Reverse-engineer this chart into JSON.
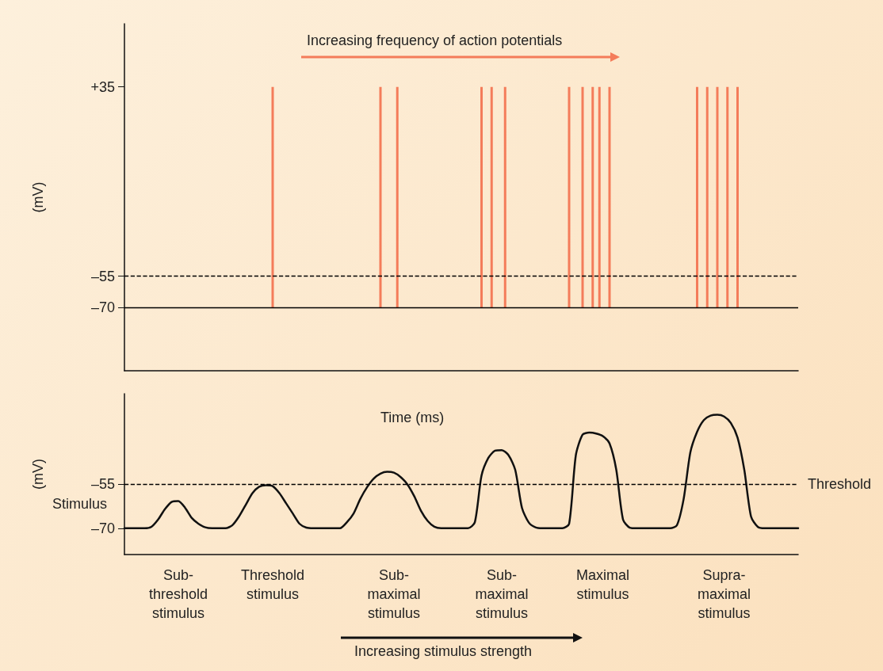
{
  "chart_data": [
    {
      "type": "bar",
      "ylabel": "(mV)",
      "annotations": [
        "Increasing frequency of action potentials"
      ],
      "categories": [
        null,
        null,
        null,
        null,
        null,
        null,
        null,
        null,
        null,
        null,
        null,
        null,
        null,
        null,
        null,
        null,
        null,
        null,
        null,
        null,
        null,
        null,
        null,
        null,
        null,
        null,
        null,
        null,
        null,
        null,
        null,
        null,
        null,
        null,
        null,
        null,
        null,
        null,
        null,
        null,
        null,
        null,
        null,
        null,
        null,
        null,
        null,
        null,
        null,
        null,
        null,
        null,
        null,
        null,
        null,
        null,
        null,
        null,
        null,
        null,
        null,
        null,
        null,
        null,
        null,
        null,
        null,
        null,
        null,
        null,
        null,
        null,
        null,
        null,
        null,
        null,
        null,
        null,
        null,
        null,
        null,
        null,
        null,
        null,
        null,
        null,
        null,
        null,
        null,
        null,
        null,
        null,
        null,
        null,
        null,
        null,
        null,
        null,
        null,
        null,
        null,
        null,
        null,
        null,
        null,
        null,
        null,
        null,
        null,
        null,
        null,
        null,
        null,
        null,
        null,
        null,
        null,
        null,
        null,
        null,
        null,
        null,
        null,
        null,
        null,
        null,
        null,
        null,
        null,
        null,
        null,
        null,
        null,
        null,
        null,
        null,
        null,
        null,
        null,
        null,
        null,
        null,
        null,
        null,
        null,
        null,
        null,
        null,
        null,
        null,
        null,
        null,
        null,
        null,
        null,
        null,
        null,
        null,
        null,
        null,
        null,
        null,
        null,
        null,
        null,
        null,
        null,
        null,
        null,
        null,
        null,
        null,
        null,
        null,
        null,
        null,
        null,
        null,
        null,
        null,
        null,
        null,
        null,
        null,
        null,
        null,
        null,
        null,
        null,
        null,
        null,
        null,
        null,
        null,
        null,
        null,
        null,
        null,
        null,
        null,
        null
      ],
      "series": [
        {
          "color": "#f47c5a",
          "values": [
            null,
            null,
            null,
            null,
            null,
            null,
            null,
            null,
            null,
            null,
            null,
            null,
            null,
            null,
            null,
            null,
            null,
            null,
            null,
            null,
            null,
            null,
            null,
            null,
            null,
            null,
            null,
            null,
            null,
            null,
            null,
            null,
            null,
            null,
            null,
            null,
            null,
            null,
            null,
            null,
            null,
            null,
            null,
            null,
            105,
            null,
            null,
            null,
            null,
            null,
            null,
            null,
            null,
            null,
            null,
            null,
            null,
            null,
            null,
            null,
            null,
            null,
            null,
            null,
            null,
            null,
            null,
            null,
            null,
            null,
            null,
            null,
            null,
            null,
            null,
            null,
            105,
            null,
            null,
            null,
            null,
            105,
            null,
            null,
            null,
            null,
            null,
            null,
            null,
            null,
            null,
            null,
            null,
            null,
            null,
            null,
            null,
            null,
            null,
            null,
            null,
            null,
            null,
            null,
            null,
            null,
            105,
            null,
            null,
            105,
            null,
            null,
            null,
            105,
            null,
            null,
            null,
            null,
            null,
            null,
            null,
            null,
            null,
            null,
            null,
            null,
            null,
            null,
            null,
            null,
            null,
            null,
            105,
            null,
            null,
            null,
            105,
            null,
            null,
            105,
            null,
            105,
            null,
            null,
            105,
            null,
            null,
            null,
            null,
            null,
            null,
            null,
            null,
            null,
            null,
            null,
            null,
            null,
            null,
            null,
            null,
            null,
            null,
            null,
            null,
            null,
            null,
            null,
            null,
            null,
            105,
            null,
            null,
            105,
            null,
            null,
            105,
            null,
            null,
            105,
            null,
            null,
            105,
            null,
            null,
            null,
            null,
            null,
            null,
            null,
            null,
            null,
            null,
            null,
            null,
            null,
            null,
            null,
            null,
            null,
            null
          ],
          "base": [
            null,
            null,
            null,
            null,
            null,
            null,
            null,
            null,
            null,
            null,
            null,
            null,
            null,
            null,
            null,
            null,
            null,
            null,
            null,
            null,
            null,
            null,
            null,
            null,
            null,
            null,
            null,
            null,
            null,
            null,
            null,
            null,
            null,
            null,
            null,
            null,
            null,
            null,
            null,
            null,
            null,
            null,
            null,
            null,
            -70,
            null,
            null,
            null,
            null,
            null,
            null,
            null,
            null,
            null,
            null,
            null,
            null,
            null,
            null,
            null,
            null,
            null,
            null,
            null,
            null,
            null,
            null,
            null,
            null,
            null,
            null,
            null,
            null,
            null,
            null,
            null,
            -70,
            null,
            null,
            null,
            null,
            -70,
            null,
            null,
            null,
            null,
            null,
            null,
            null,
            null,
            null,
            null,
            null,
            null,
            null,
            null,
            null,
            null,
            null,
            null,
            null,
            null,
            null,
            null,
            null,
            null,
            -70,
            null,
            null,
            -70,
            null,
            null,
            null,
            -70,
            null,
            null,
            null,
            null,
            null,
            null,
            null,
            null,
            null,
            null,
            null,
            null,
            null,
            null,
            null,
            null,
            null,
            null,
            -70,
            null,
            null,
            null,
            -70,
            null,
            null,
            -70,
            null,
            -70,
            null,
            null,
            -70,
            null,
            null,
            null,
            null,
            null,
            null,
            null,
            null,
            null,
            null,
            null,
            null,
            null,
            null,
            null,
            null,
            null,
            null,
            null,
            null,
            null,
            null,
            null,
            null,
            null,
            -70,
            null,
            null,
            -70,
            null,
            null,
            -70,
            null,
            null,
            -70,
            null,
            null,
            -70,
            null,
            null,
            null,
            null,
            null,
            null,
            null,
            null,
            null,
            null,
            null,
            null,
            null,
            null,
            null,
            null,
            null,
            null
          ]
        }
      ],
      "ylim": [
        -100,
        65
      ],
      "yticks": [
        {
          "value": 35,
          "label": "+35"
        },
        {
          "value": -55,
          "label": "–55"
        },
        {
          "value": -70,
          "label": "–70"
        }
      ],
      "tick_labels": "y",
      "ref_lines": [
        {
          "axis": "y",
          "value": -55,
          "color": "#000000",
          "line_style": "dashed"
        },
        {
          "axis": "y",
          "value": -70,
          "color": "#000000",
          "line_style": "solid"
        }
      ]
    },
    {
      "type": "line",
      "ylabel": "(mV)",
      "annotations": [
        "Time (ms)",
        "Stimulus",
        "Increasing stimulus strength"
      ],
      "categories": [
        null,
        null,
        null,
        null,
        null,
        null,
        null,
        null,
        "Sub-\nthreshold\nstimulus",
        null,
        null,
        null,
        null,
        null,
        null,
        null,
        null,
        null,
        null,
        null,
        null,
        null,
        "Threshold\nstimulus",
        null,
        null,
        null,
        null,
        null,
        null,
        null,
        null,
        null,
        null,
        null,
        null,
        null,
        null,
        null,
        null,
        null,
        "Sub-\nmaximal\nstimulus",
        null,
        null,
        null,
        null,
        null,
        null,
        null,
        null,
        null,
        null,
        null,
        null,
        null,
        null,
        null,
        "Sub-\nmaximal\nstimulus",
        null,
        null,
        null,
        null,
        null,
        null,
        null,
        null,
        null,
        null,
        null,
        null,
        null,
        null,
        "Maximal\nstimulus",
        null,
        null,
        null,
        null,
        null,
        null,
        null,
        null,
        null,
        null,
        null,
        null,
        null,
        null,
        null,
        null,
        null,
        "Supra-\nmaximal\nstimulus",
        null,
        null,
        null,
        null,
        null,
        null,
        null,
        null,
        null,
        null,
        null
      ],
      "series": [
        {
          "color": "#111111",
          "values": [
            -70,
            -70,
            -70,
            -70,
            -69.5,
            -67,
            -63.5,
            -61,
            -60.7,
            -63,
            -66.5,
            -68.5,
            -69.7,
            -70,
            -70,
            -70,
            -69,
            -66,
            -62,
            -58,
            -55.8,
            -55.3,
            -55.6,
            -58,
            -61.5,
            -65,
            -68.5,
            -69.8,
            -70,
            -70,
            -70,
            -70,
            -70,
            -68,
            -65,
            -60,
            -56,
            -53,
            -51.3,
            -50.7,
            -51,
            -52.5,
            -55,
            -59,
            -64,
            -67.5,
            -69.5,
            -70,
            -70,
            -70,
            -70,
            -70,
            -68,
            -52,
            -46,
            -43.5,
            -43.3,
            -45,
            -50,
            -63,
            -68,
            -69.7,
            -70,
            -70,
            -70,
            -70,
            -68.5,
            -45,
            -38,
            -37.3,
            -37.6,
            -38.5,
            -41,
            -50,
            -67,
            -69.8,
            -70,
            -70,
            -70,
            -70,
            -70,
            -70,
            -69,
            -60,
            -44,
            -37,
            -33,
            -31.5,
            -31.2,
            -31.8,
            -34,
            -39,
            -50,
            -66,
            -69.5,
            -70,
            -70,
            -70,
            -70,
            -70,
            -70
          ]
        }
      ],
      "ylim": [
        -79,
        -24
      ],
      "yticks": [
        {
          "value": -55,
          "label": "–55"
        },
        {
          "value": -70,
          "label": "–70"
        }
      ],
      "ref_lines": [
        {
          "axis": "y",
          "value": -55,
          "label": "Threshold",
          "color": "#000000",
          "line_style": "dashed"
        }
      ]
    }
  ]
}
